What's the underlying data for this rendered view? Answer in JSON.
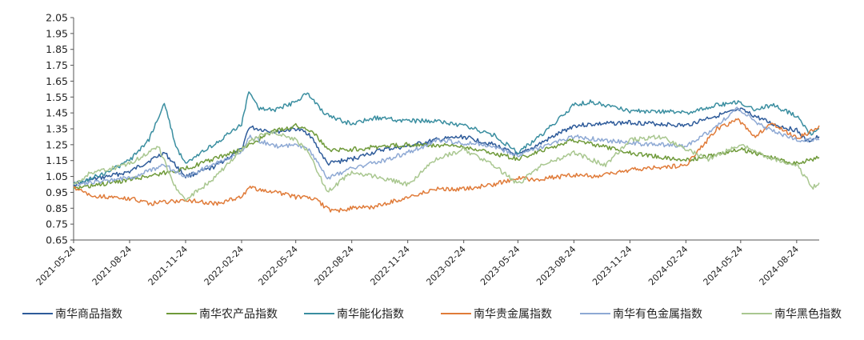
{
  "chart_data": {
    "type": "line",
    "x_ticks": [
      "2021-05-24",
      "2021-08-24",
      "2021-11-24",
      "2022-02-24",
      "2022-05-24",
      "2022-08-24",
      "2022-11-24",
      "2023-02-24",
      "2023-05-24",
      "2023-08-24",
      "2023-11-24",
      "2024-02-24",
      "2024-05-24",
      "2024-08-24"
    ],
    "y_ticks": [
      "0.65",
      "0.75",
      "0.85",
      "0.95",
      "1.05",
      "1.15",
      "1.25",
      "1.35",
      "1.45",
      "1.55",
      "1.65",
      "1.75",
      "1.85",
      "1.95",
      "2.05"
    ],
    "ylim": [
      0.65,
      2.05
    ],
    "xlim": [
      "2021-05-24",
      "2024-09-30"
    ],
    "grid": false,
    "legend_position": "bottom",
    "series": [
      {
        "name": "南华商品指数",
        "color": "#2e5b9a",
        "points": [
          [
            "2021-05-24",
            1.0
          ],
          [
            "2021-06-24",
            1.03
          ],
          [
            "2021-08-24",
            1.08
          ],
          [
            "2021-10-20",
            1.2
          ],
          [
            "2021-11-24",
            1.05
          ],
          [
            "2022-01-05",
            1.1
          ],
          [
            "2022-02-24",
            1.22
          ],
          [
            "2022-03-08",
            1.36
          ],
          [
            "2022-04-20",
            1.33
          ],
          [
            "2022-05-24",
            1.35
          ],
          [
            "2022-06-15",
            1.32
          ],
          [
            "2022-07-15",
            1.13
          ],
          [
            "2022-08-24",
            1.16
          ],
          [
            "2022-10-15",
            1.22
          ],
          [
            "2022-11-24",
            1.24
          ],
          [
            "2023-01-10",
            1.28
          ],
          [
            "2023-02-24",
            1.3
          ],
          [
            "2023-04-15",
            1.25
          ],
          [
            "2023-05-24",
            1.18
          ],
          [
            "2023-07-01",
            1.26
          ],
          [
            "2023-08-24",
            1.37
          ],
          [
            "2023-10-01",
            1.38
          ],
          [
            "2023-11-24",
            1.39
          ],
          [
            "2024-01-15",
            1.38
          ],
          [
            "2024-02-24",
            1.37
          ],
          [
            "2024-04-01",
            1.42
          ],
          [
            "2024-05-24",
            1.47
          ],
          [
            "2024-07-15",
            1.38
          ],
          [
            "2024-08-24",
            1.34
          ],
          [
            "2024-09-10",
            1.27
          ],
          [
            "2024-09-30",
            1.3
          ]
        ]
      },
      {
        "name": "南华农产品指数",
        "color": "#6f9a3a",
        "points": [
          [
            "2021-05-24",
            0.97
          ],
          [
            "2021-08-24",
            1.03
          ],
          [
            "2021-11-24",
            1.1
          ],
          [
            "2022-02-24",
            1.22
          ],
          [
            "2022-04-15",
            1.33
          ],
          [
            "2022-05-24",
            1.37
          ],
          [
            "2022-06-20",
            1.34
          ],
          [
            "2022-07-15",
            1.22
          ],
          [
            "2022-08-24",
            1.22
          ],
          [
            "2022-10-15",
            1.24
          ],
          [
            "2022-11-24",
            1.25
          ],
          [
            "2023-02-24",
            1.24
          ],
          [
            "2023-05-24",
            1.16
          ],
          [
            "2023-06-15",
            1.19
          ],
          [
            "2023-08-24",
            1.28
          ],
          [
            "2023-11-24",
            1.2
          ],
          [
            "2024-02-24",
            1.15
          ],
          [
            "2024-05-24",
            1.22
          ],
          [
            "2024-08-24",
            1.13
          ],
          [
            "2024-09-30",
            1.17
          ]
        ]
      },
      {
        "name": "南华能化指数",
        "color": "#3a8ea0",
        "points": [
          [
            "2021-05-24",
            1.0
          ],
          [
            "2021-07-20",
            1.08
          ],
          [
            "2021-08-24",
            1.15
          ],
          [
            "2021-09-25",
            1.28
          ],
          [
            "2021-10-20",
            1.51
          ],
          [
            "2021-11-10",
            1.22
          ],
          [
            "2021-11-24",
            1.14
          ],
          [
            "2022-01-10",
            1.25
          ],
          [
            "2022-02-24",
            1.38
          ],
          [
            "2022-03-08",
            1.58
          ],
          [
            "2022-03-25",
            1.48
          ],
          [
            "2022-04-20",
            1.47
          ],
          [
            "2022-05-24",
            1.52
          ],
          [
            "2022-06-12",
            1.58
          ],
          [
            "2022-07-10",
            1.44
          ],
          [
            "2022-08-24",
            1.38
          ],
          [
            "2022-10-01",
            1.42
          ],
          [
            "2022-11-24",
            1.4
          ],
          [
            "2023-01-10",
            1.4
          ],
          [
            "2023-02-24",
            1.37
          ],
          [
            "2023-04-15",
            1.31
          ],
          [
            "2023-05-24",
            1.2
          ],
          [
            "2023-07-01",
            1.31
          ],
          [
            "2023-08-24",
            1.5
          ],
          [
            "2023-09-20",
            1.52
          ],
          [
            "2023-11-24",
            1.46
          ],
          [
            "2024-01-15",
            1.46
          ],
          [
            "2024-02-24",
            1.45
          ],
          [
            "2024-04-15",
            1.5
          ],
          [
            "2024-05-24",
            1.52
          ],
          [
            "2024-06-15",
            1.47
          ],
          [
            "2024-07-15",
            1.5
          ],
          [
            "2024-08-24",
            1.43
          ],
          [
            "2024-09-15",
            1.32
          ],
          [
            "2024-09-30",
            1.35
          ]
        ]
      },
      {
        "name": "南华贵金属指数",
        "color": "#e07b39",
        "points": [
          [
            "2021-05-24",
            0.98
          ],
          [
            "2021-06-24",
            0.93
          ],
          [
            "2021-08-24",
            0.91
          ],
          [
            "2021-09-30",
            0.88
          ],
          [
            "2021-11-24",
            0.9
          ],
          [
            "2022-01-15",
            0.88
          ],
          [
            "2022-02-24",
            0.92
          ],
          [
            "2022-03-08",
            0.98
          ],
          [
            "2022-04-10",
            0.96
          ],
          [
            "2022-05-24",
            0.92
          ],
          [
            "2022-06-24",
            0.91
          ],
          [
            "2022-07-20",
            0.83
          ],
          [
            "2022-08-24",
            0.85
          ],
          [
            "2022-10-01",
            0.86
          ],
          [
            "2022-11-24",
            0.92
          ],
          [
            "2023-01-10",
            0.97
          ],
          [
            "2023-02-24",
            0.97
          ],
          [
            "2023-04-15",
            1.0
          ],
          [
            "2023-05-24",
            1.04
          ],
          [
            "2023-06-24",
            1.03
          ],
          [
            "2023-08-24",
            1.06
          ],
          [
            "2023-10-01",
            1.05
          ],
          [
            "2023-11-24",
            1.09
          ],
          [
            "2024-01-15",
            1.11
          ],
          [
            "2024-02-24",
            1.12
          ],
          [
            "2024-03-20",
            1.23
          ],
          [
            "2024-04-15",
            1.35
          ],
          [
            "2024-05-20",
            1.41
          ],
          [
            "2024-06-15",
            1.3
          ],
          [
            "2024-07-15",
            1.38
          ],
          [
            "2024-08-24",
            1.29
          ],
          [
            "2024-09-15",
            1.33
          ],
          [
            "2024-09-30",
            1.37
          ]
        ]
      },
      {
        "name": "南华有色金属指数",
        "color": "#8ea9d4",
        "points": [
          [
            "2021-05-24",
            1.0
          ],
          [
            "2021-08-24",
            1.04
          ],
          [
            "2021-10-20",
            1.12
          ],
          [
            "2021-11-24",
            1.05
          ],
          [
            "2022-02-24",
            1.2
          ],
          [
            "2022-03-08",
            1.3
          ],
          [
            "2022-04-20",
            1.24
          ],
          [
            "2022-05-24",
            1.25
          ],
          [
            "2022-06-15",
            1.22
          ],
          [
            "2022-07-15",
            1.04
          ],
          [
            "2022-08-24",
            1.1
          ],
          [
            "2022-10-15",
            1.15
          ],
          [
            "2022-11-24",
            1.2
          ],
          [
            "2023-01-15",
            1.28
          ],
          [
            "2023-02-24",
            1.26
          ],
          [
            "2023-04-01",
            1.25
          ],
          [
            "2023-05-24",
            1.18
          ],
          [
            "2023-07-15",
            1.25
          ],
          [
            "2023-08-24",
            1.3
          ],
          [
            "2023-11-24",
            1.26
          ],
          [
            "2024-02-24",
            1.24
          ],
          [
            "2024-04-01",
            1.33
          ],
          [
            "2024-05-20",
            1.48
          ],
          [
            "2024-07-01",
            1.36
          ],
          [
            "2024-08-24",
            1.28
          ],
          [
            "2024-09-30",
            1.28
          ]
        ]
      },
      {
        "name": "南华黑色指数",
        "color": "#a9c790",
        "points": [
          [
            "2021-05-24",
            1.0
          ],
          [
            "2021-06-24",
            1.08
          ],
          [
            "2021-07-25",
            1.1
          ],
          [
            "2021-08-24",
            1.13
          ],
          [
            "2021-10-10",
            1.24
          ],
          [
            "2021-11-05",
            1.0
          ],
          [
            "2021-11-24",
            0.9
          ],
          [
            "2022-01-10",
            1.04
          ],
          [
            "2022-02-24",
            1.22
          ],
          [
            "2022-03-20",
            1.3
          ],
          [
            "2022-04-20",
            1.33
          ],
          [
            "2022-05-24",
            1.28
          ],
          [
            "2022-06-15",
            1.2
          ],
          [
            "2022-07-15",
            0.95
          ],
          [
            "2022-08-24",
            1.08
          ],
          [
            "2022-10-01",
            1.05
          ],
          [
            "2022-11-24",
            1.0
          ],
          [
            "2023-01-10",
            1.16
          ],
          [
            "2023-02-24",
            1.22
          ],
          [
            "2023-04-15",
            1.12
          ],
          [
            "2023-05-24",
            1.0
          ],
          [
            "2023-07-01",
            1.12
          ],
          [
            "2023-08-24",
            1.2
          ],
          [
            "2023-10-15",
            1.12
          ],
          [
            "2023-11-24",
            1.28
          ],
          [
            "2024-01-15",
            1.3
          ],
          [
            "2024-02-24",
            1.22
          ],
          [
            "2024-04-01",
            1.16
          ],
          [
            "2024-05-24",
            1.25
          ],
          [
            "2024-07-01",
            1.18
          ],
          [
            "2024-08-24",
            1.12
          ],
          [
            "2024-09-20",
            0.98
          ],
          [
            "2024-09-30",
            1.01
          ]
        ]
      }
    ]
  }
}
